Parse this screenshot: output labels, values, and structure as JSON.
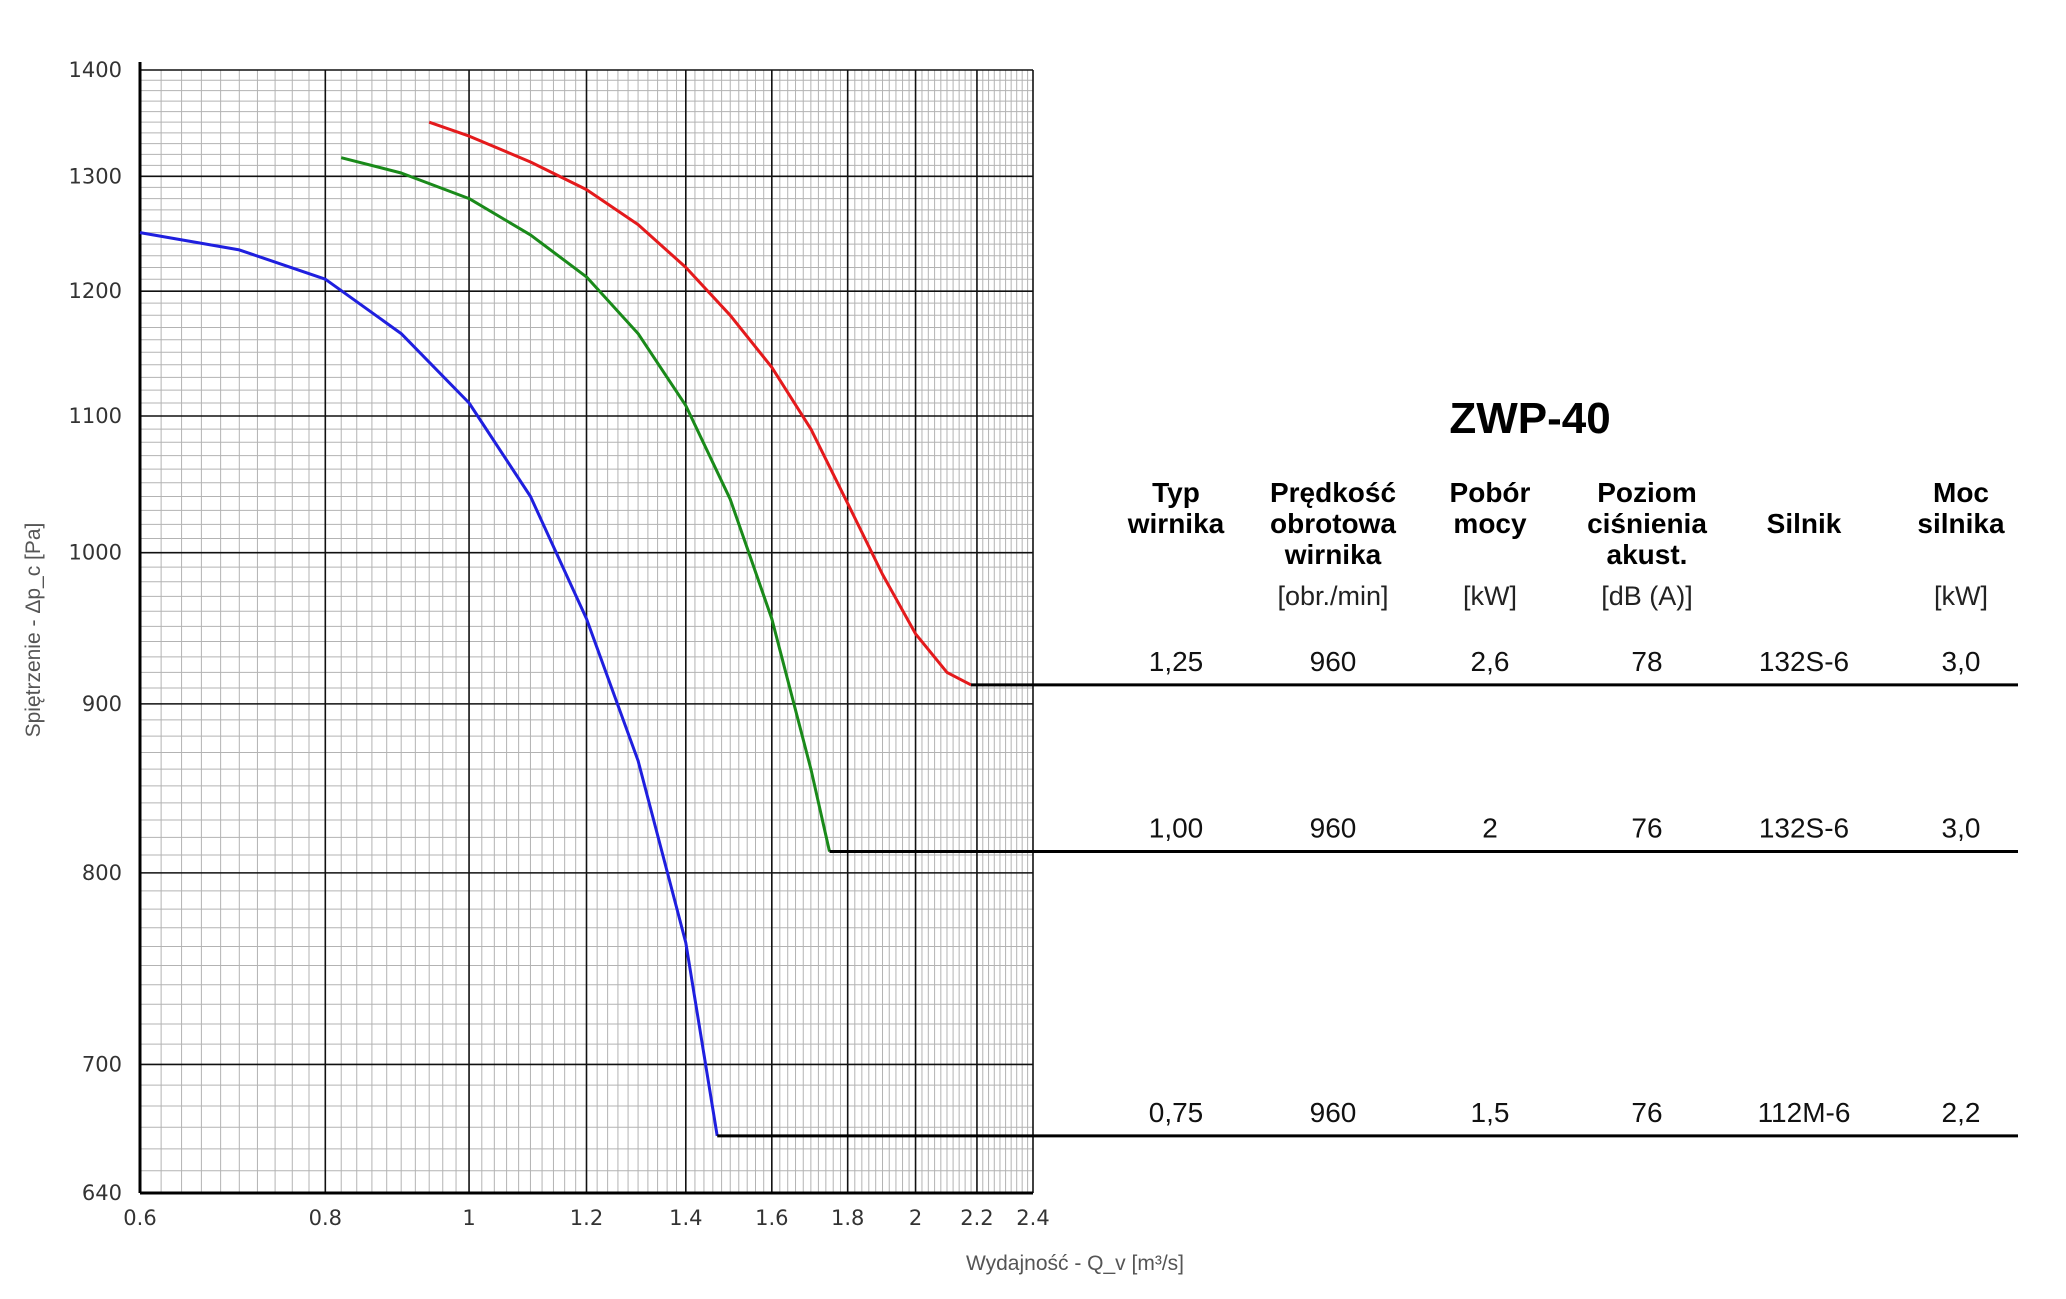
{
  "chart_data": {
    "type": "line",
    "title": "ZWP-40",
    "xlabel": "Wydajność - Q_v [m³/s]",
    "ylabel": "Spiętrzenie - Δp_c [Pa]",
    "x_scale": "log",
    "y_scale": "log",
    "xlim": [
      0.6,
      2.4
    ],
    "ylim": [
      640,
      1400
    ],
    "x_ticks": [
      "0.6",
      "0.8",
      "1",
      "1.2",
      "1.4",
      "1.6",
      "1.8",
      "2",
      "2.2",
      "2.4"
    ],
    "y_ticks": [
      "640",
      "700",
      "800",
      "900",
      "1000",
      "1100",
      "1200",
      "1300",
      "1400"
    ],
    "grid": true,
    "series": [
      {
        "color": "#e41a1c",
        "points": [
          [
            0.94,
            1350
          ],
          [
            1.0,
            1337
          ],
          [
            1.1,
            1313
          ],
          [
            1.2,
            1288
          ],
          [
            1.3,
            1257
          ],
          [
            1.4,
            1220
          ],
          [
            1.5,
            1180
          ],
          [
            1.6,
            1138
          ],
          [
            1.7,
            1090
          ],
          [
            1.8,
            1035
          ],
          [
            1.9,
            985
          ],
          [
            2.0,
            945
          ],
          [
            2.1,
            920
          ],
          [
            2.18,
            912
          ]
        ],
        "end_level": 912
      },
      {
        "color": "#1a8a1a",
        "points": [
          [
            0.82,
            1317
          ],
          [
            0.9,
            1303
          ],
          [
            1.0,
            1280
          ],
          [
            1.1,
            1248
          ],
          [
            1.2,
            1212
          ],
          [
            1.3,
            1165
          ],
          [
            1.4,
            1108
          ],
          [
            1.5,
            1038
          ],
          [
            1.6,
            955
          ],
          [
            1.7,
            860
          ],
          [
            1.75,
            812
          ]
        ],
        "end_level": 812
      },
      {
        "color": "#1f1fdf",
        "points": [
          [
            0.6,
            1250
          ],
          [
            0.7,
            1235
          ],
          [
            0.8,
            1210
          ],
          [
            0.9,
            1165
          ],
          [
            1.0,
            1110
          ],
          [
            1.1,
            1040
          ],
          [
            1.2,
            955
          ],
          [
            1.3,
            865
          ],
          [
            1.4,
            762
          ],
          [
            1.47,
            666
          ]
        ],
        "end_level": 666
      }
    ],
    "table": {
      "headers": [
        [
          "Typ",
          "wirnika"
        ],
        [
          "Prędkość",
          "obrotowa",
          "wirnika"
        ],
        [
          "Pobór",
          "mocy"
        ],
        [
          "Poziom",
          "ciśnienia",
          "akust."
        ],
        [
          "Silnik"
        ],
        [
          "Moc",
          "silnika"
        ]
      ],
      "units": [
        "",
        "[obr./min]",
        "[kW]",
        "[dB (A)]",
        "",
        "[kW]"
      ],
      "rows": [
        [
          "1,25",
          "960",
          "2,6",
          "78",
          "132S-6",
          "3,0"
        ],
        [
          "1,00",
          "960",
          "2",
          "76",
          "132S-6",
          "3,0"
        ],
        [
          "0,75",
          "960",
          "1,5",
          "76",
          "112M-6",
          "2,2"
        ]
      ]
    }
  }
}
